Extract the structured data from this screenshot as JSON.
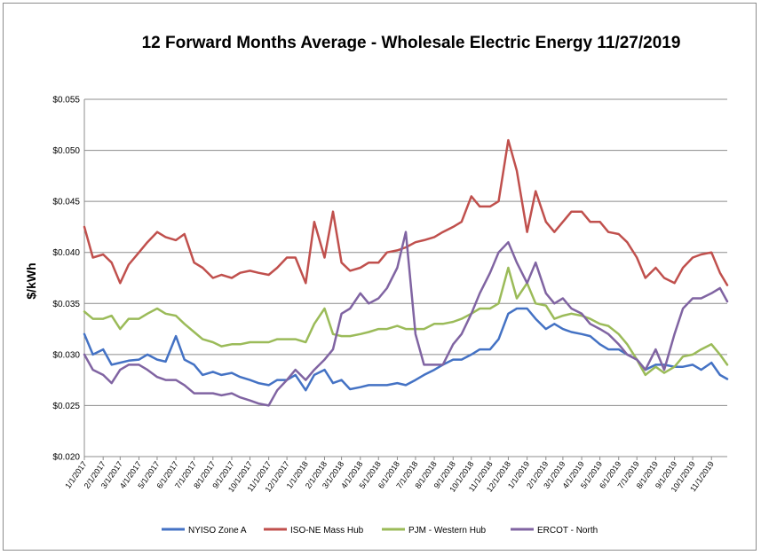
{
  "chart_data": {
    "type": "line",
    "title": "12 Forward Months Average - Wholesale Electric Energy 11/27/2019",
    "xlabel": "",
    "ylabel": "$/kWh",
    "ylim": [
      0.02,
      0.055
    ],
    "yticks": [
      "$0.020",
      "$0.025",
      "$0.030",
      "$0.035",
      "$0.040",
      "$0.045",
      "$0.050",
      "$0.055"
    ],
    "xlim": [
      "2017-01-01",
      "2019-11-27"
    ],
    "xticks": [
      "1/1/2017",
      "2/1/2017",
      "3/1/2017",
      "4/1/2017",
      "5/1/2017",
      "6/1/2017",
      "7/1/2017",
      "8/1/2017",
      "9/1/2017",
      "10/1/2017",
      "11/1/2017",
      "12/1/2017",
      "1/1/2018",
      "2/1/2018",
      "3/1/2018",
      "4/1/2018",
      "5/1/2018",
      "6/1/2018",
      "7/1/2018",
      "8/1/2018",
      "9/1/2018",
      "10/1/2018",
      "11/1/2018",
      "12/1/2018",
      "1/1/2019",
      "2/1/2019",
      "3/1/2019",
      "4/1/2019",
      "5/1/2019",
      "6/1/2019",
      "7/1/2019",
      "8/1/2019",
      "9/1/2019",
      "10/1/2019",
      "11/1/2019"
    ],
    "grid": "horizontal",
    "legend_position": "bottom",
    "x": [
      "2017-01-01",
      "2017-01-15",
      "2017-02-01",
      "2017-02-15",
      "2017-03-01",
      "2017-03-15",
      "2017-04-01",
      "2017-04-15",
      "2017-05-01",
      "2017-05-15",
      "2017-06-01",
      "2017-06-15",
      "2017-07-01",
      "2017-07-15",
      "2017-08-01",
      "2017-08-15",
      "2017-09-01",
      "2017-09-15",
      "2017-10-01",
      "2017-10-15",
      "2017-11-01",
      "2017-11-15",
      "2017-12-01",
      "2017-12-15",
      "2018-01-01",
      "2018-01-15",
      "2018-02-01",
      "2018-02-15",
      "2018-03-01",
      "2018-03-15",
      "2018-04-01",
      "2018-04-15",
      "2018-05-01",
      "2018-05-15",
      "2018-06-01",
      "2018-06-15",
      "2018-07-01",
      "2018-07-15",
      "2018-08-01",
      "2018-08-15",
      "2018-09-01",
      "2018-09-15",
      "2018-10-01",
      "2018-10-15",
      "2018-11-01",
      "2018-11-15",
      "2018-12-01",
      "2018-12-15",
      "2019-01-01",
      "2019-01-15",
      "2019-02-01",
      "2019-02-15",
      "2019-03-01",
      "2019-03-15",
      "2019-04-01",
      "2019-04-15",
      "2019-05-01",
      "2019-05-15",
      "2019-06-01",
      "2019-06-15",
      "2019-07-01",
      "2019-07-15",
      "2019-08-01",
      "2019-08-15",
      "2019-09-01",
      "2019-09-15",
      "2019-10-01",
      "2019-10-15",
      "2019-11-01",
      "2019-11-15",
      "2019-11-27"
    ],
    "series": [
      {
        "name": "NYISO Zone A",
        "color": "#4472C4",
        "values": [
          0.032,
          0.03,
          0.0305,
          0.029,
          0.0292,
          0.0294,
          0.0295,
          0.03,
          0.0295,
          0.0293,
          0.0318,
          0.0295,
          0.029,
          0.028,
          0.0283,
          0.028,
          0.0282,
          0.0278,
          0.0275,
          0.0272,
          0.027,
          0.0275,
          0.0275,
          0.028,
          0.0265,
          0.028,
          0.0285,
          0.0272,
          0.0275,
          0.0266,
          0.0268,
          0.027,
          0.027,
          0.027,
          0.0272,
          0.027,
          0.0275,
          0.028,
          0.0285,
          0.029,
          0.0295,
          0.0295,
          0.03,
          0.0305,
          0.0305,
          0.0315,
          0.034,
          0.0345,
          0.0345,
          0.0335,
          0.0325,
          0.033,
          0.0325,
          0.0322,
          0.032,
          0.0318,
          0.031,
          0.0305,
          0.0305,
          0.03,
          0.0295,
          0.0285,
          0.029,
          0.029,
          0.0288,
          0.0288,
          0.029,
          0.0285,
          0.0292,
          0.028,
          0.0276
        ]
      },
      {
        "name": "ISO-NE Mass Hub",
        "color": "#C0504D",
        "values": [
          0.0425,
          0.0395,
          0.0398,
          0.039,
          0.037,
          0.0388,
          0.04,
          0.041,
          0.042,
          0.0415,
          0.0412,
          0.0418,
          0.039,
          0.0385,
          0.0375,
          0.0378,
          0.0375,
          0.038,
          0.0382,
          0.038,
          0.0378,
          0.0385,
          0.0395,
          0.0395,
          0.037,
          0.043,
          0.0395,
          0.044,
          0.039,
          0.0382,
          0.0385,
          0.039,
          0.039,
          0.04,
          0.0402,
          0.0405,
          0.041,
          0.0412,
          0.0415,
          0.042,
          0.0425,
          0.043,
          0.0455,
          0.0445,
          0.0445,
          0.045,
          0.051,
          0.048,
          0.042,
          0.046,
          0.043,
          0.042,
          0.043,
          0.044,
          0.044,
          0.043,
          0.043,
          0.042,
          0.0418,
          0.041,
          0.0395,
          0.0375,
          0.0385,
          0.0375,
          0.037,
          0.0385,
          0.0395,
          0.0398,
          0.04,
          0.038,
          0.0368
        ]
      },
      {
        "name": "PJM - Western Hub",
        "color": "#9BBB59",
        "values": [
          0.0342,
          0.0335,
          0.0335,
          0.0338,
          0.0325,
          0.0335,
          0.0335,
          0.034,
          0.0345,
          0.034,
          0.0338,
          0.033,
          0.0322,
          0.0315,
          0.0312,
          0.0308,
          0.031,
          0.031,
          0.0312,
          0.0312,
          0.0312,
          0.0315,
          0.0315,
          0.0315,
          0.0312,
          0.033,
          0.0345,
          0.032,
          0.0318,
          0.0318,
          0.032,
          0.0322,
          0.0325,
          0.0325,
          0.0328,
          0.0325,
          0.0325,
          0.0325,
          0.033,
          0.033,
          0.0332,
          0.0335,
          0.034,
          0.0345,
          0.0345,
          0.035,
          0.0385,
          0.0355,
          0.037,
          0.035,
          0.0348,
          0.0335,
          0.0338,
          0.034,
          0.0338,
          0.0335,
          0.033,
          0.0328,
          0.032,
          0.031,
          0.0295,
          0.028,
          0.0288,
          0.0282,
          0.0288,
          0.0298,
          0.03,
          0.0305,
          0.031,
          0.03,
          0.029
        ]
      },
      {
        "name": "ERCOT - North",
        "color": "#8064A2",
        "values": [
          0.03,
          0.0285,
          0.028,
          0.0272,
          0.0285,
          0.029,
          0.029,
          0.0285,
          0.0278,
          0.0275,
          0.0275,
          0.027,
          0.0262,
          0.0262,
          0.0262,
          0.026,
          0.0262,
          0.0258,
          0.0255,
          0.0252,
          0.025,
          0.0265,
          0.0275,
          0.0285,
          0.0275,
          0.0285,
          0.0295,
          0.0305,
          0.034,
          0.0345,
          0.036,
          0.035,
          0.0355,
          0.0365,
          0.0385,
          0.042,
          0.032,
          0.029,
          0.029,
          0.029,
          0.031,
          0.032,
          0.034,
          0.036,
          0.038,
          0.04,
          0.041,
          0.039,
          0.037,
          0.039,
          0.036,
          0.035,
          0.0355,
          0.0345,
          0.034,
          0.033,
          0.0325,
          0.032,
          0.031,
          0.03,
          0.0295,
          0.0285,
          0.0305,
          0.0285,
          0.032,
          0.0345,
          0.0355,
          0.0355,
          0.036,
          0.0365,
          0.0352
        ]
      }
    ]
  }
}
